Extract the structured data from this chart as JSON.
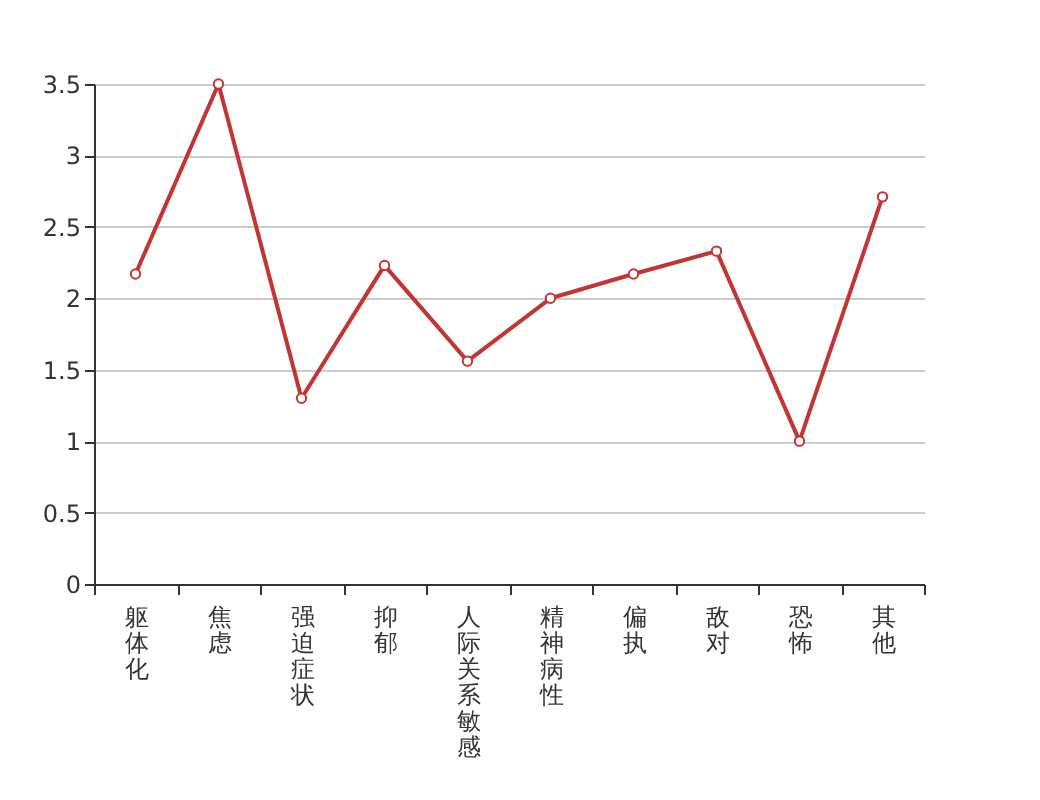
{
  "chart_data": {
    "type": "line",
    "categories": [
      "躯体化",
      "焦虑",
      "强迫症状",
      "抑郁",
      "人际关系敏感",
      "精神病性",
      "偏执",
      "敌对",
      "恐怖",
      "其他"
    ],
    "series": [
      {
        "color": "#c23531",
        "values": [
          2.17,
          3.5,
          1.3,
          2.23,
          1.56,
          2.0,
          2.17,
          2.33,
          1.0,
          2.71
        ]
      }
    ],
    "ylim": [
      0,
      3.5
    ],
    "yticks": [
      0,
      0.5,
      1,
      1.5,
      2,
      2.5,
      3,
      3.5
    ],
    "grid": "y",
    "marker": "circle",
    "line_style": "solid",
    "legend": false
  }
}
